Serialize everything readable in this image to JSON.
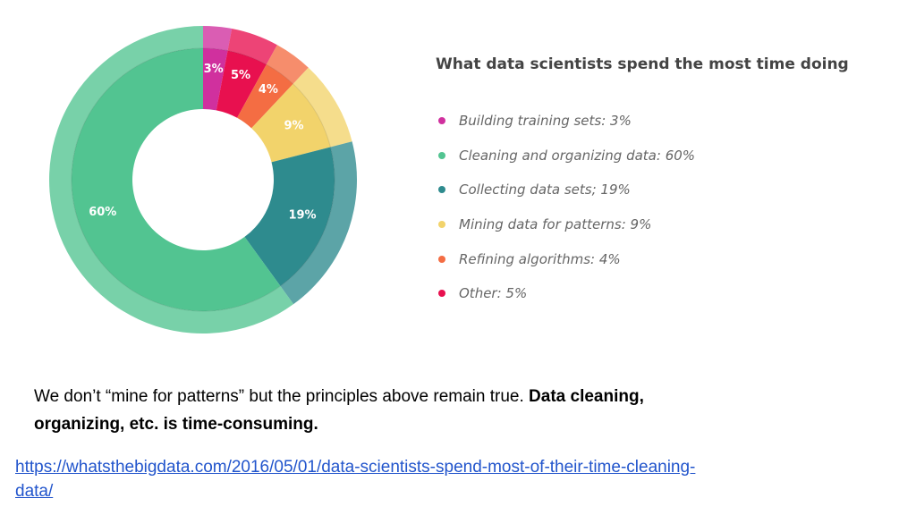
{
  "chart_data": {
    "type": "pie",
    "title": "What data scientists spend the most time doing",
    "categories": [
      "Building training sets",
      "Cleaning and organizing data",
      "Collecting data sets",
      "Mining data for patterns",
      "Refining algorithms",
      "Other"
    ],
    "values": [
      3,
      60,
      19,
      9,
      4,
      5
    ],
    "slice_labels": [
      "3%",
      "60%",
      "19%",
      "9%",
      "4%",
      "5%"
    ],
    "legend_labels": [
      "Building training sets: 3%",
      "Cleaning and organizing data: 60%",
      "Collecting data sets; 19%",
      "Mining data for patterns: 9%",
      "Refining algorithms: 4%",
      "Other: 5%"
    ],
    "colors": [
      "#d0309e",
      "#52c491",
      "#2e8b8e",
      "#f2d36b",
      "#f46d43",
      "#e8104f"
    ],
    "legend_placement": "right"
  },
  "caption": {
    "normal": "We don’t “mine for patterns” but the principles above remain true. ",
    "bold": "Data cleaning, organizing, etc. is time-consuming."
  },
  "source_link": "https://whatsthebigdata.com/2016/05/01/data-scientists-spend-most-of-their-time-cleaning-data/"
}
